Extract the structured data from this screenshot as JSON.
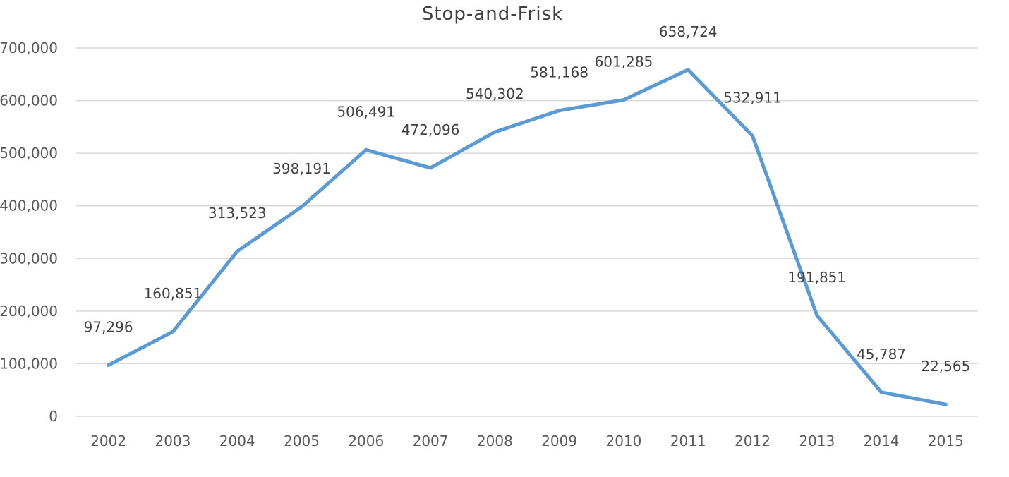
{
  "chart_data": {
    "type": "line",
    "title": "Stop-and-Frisk",
    "xlabel": "",
    "ylabel": "",
    "categories": [
      "2002",
      "2003",
      "2004",
      "2005",
      "2006",
      "2007",
      "2008",
      "2009",
      "2010",
      "2011",
      "2012",
      "2013",
      "2014",
      "2015"
    ],
    "series": [
      {
        "values": [
          97296,
          160851,
          313523,
          398191,
          506491,
          472096,
          540302,
          581168,
          601285,
          658724,
          532911,
          191851,
          45787,
          22565
        ],
        "data_labels": [
          "97,296",
          "160,851",
          "313,523",
          "398,191",
          "506,491",
          "472,096",
          "540,302",
          "581,168",
          "601,285",
          "658,724",
          "532,911",
          "191,851",
          "45,787",
          "22,565"
        ],
        "color": "#5b9bd5"
      }
    ],
    "ylim": [
      0,
      700000
    ],
    "yticks": [
      0,
      100000,
      200000,
      300000,
      400000,
      500000,
      600000,
      700000
    ],
    "ytick_labels": [
      "0",
      "100,000",
      "200,000",
      "300,000",
      "400,000",
      "500,000",
      "600,000",
      "700,000"
    ],
    "grid": true,
    "legend": "none"
  }
}
